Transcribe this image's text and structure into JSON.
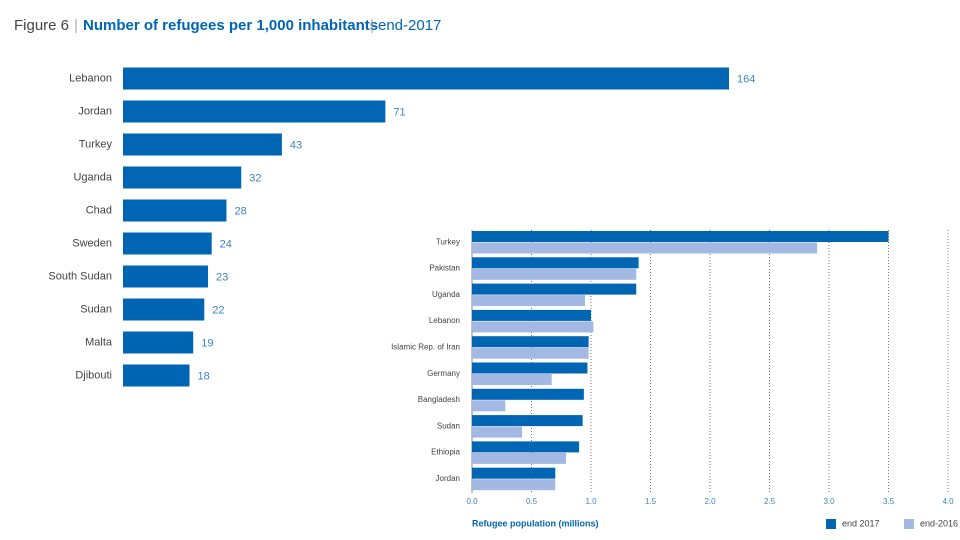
{
  "chart_data": [
    {
      "type": "hbar",
      "title_prefix": "Figure 6",
      "title": "Number of refugees per 1,000 inhabitants",
      "subtitle": "end-2017",
      "categories": [
        "Lebanon",
        "Jordan",
        "Turkey",
        "Uganda",
        "Chad",
        "Sweden",
        "South Sudan",
        "Sudan",
        "Malta",
        "Djibouti"
      ],
      "values": [
        164,
        71,
        43,
        32,
        28,
        24,
        23,
        22,
        19,
        18
      ],
      "color": "#0066b3"
    },
    {
      "type": "grouped-hbar",
      "xlabel": "Refugee population (millions)",
      "categories": [
        "Turkey",
        "Pakistan",
        "Uganda",
        "Lebanon",
        "Islamic Rep. of Iran",
        "Germany",
        "Bangladesh",
        "Sudan",
        "Ethiopia",
        "Jordan"
      ],
      "series": [
        {
          "name": "end 2017",
          "color": "#0066b3",
          "values": [
            3.5,
            1.4,
            1.38,
            1.0,
            0.98,
            0.97,
            0.94,
            0.93,
            0.9,
            0.7
          ]
        },
        {
          "name": "end-2016",
          "color": "#a3b9e3",
          "values": [
            2.9,
            1.38,
            0.95,
            1.02,
            0.98,
            0.67,
            0.28,
            0.42,
            0.79,
            0.7
          ]
        }
      ],
      "xlim": [
        0,
        4
      ],
      "xticks": [
        {
          "value": 0,
          "label": "0.0"
        },
        0.5,
        {
          "value": 1,
          "label": "1.0"
        },
        1.5,
        {
          "value": 2,
          "label": "2.0"
        },
        2.5,
        {
          "value": 3,
          "label": "3.0"
        },
        3.5,
        {
          "value": 4,
          "label": "4.0"
        }
      ],
      "grid": true
    }
  ]
}
